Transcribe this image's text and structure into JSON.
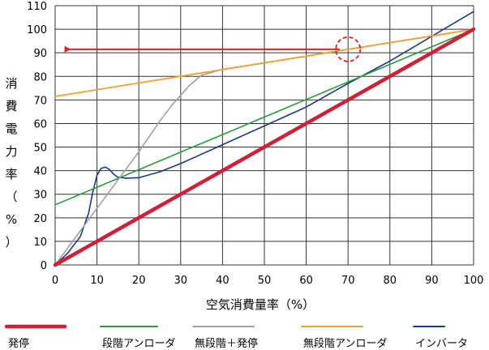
{
  "chart_data": {
    "type": "line",
    "xlabel": "空気消費量率（%）",
    "ylabel": "消費電力率（%）",
    "xlim": [
      0,
      100
    ],
    "ylim": [
      0,
      110
    ],
    "xticks": [
      "0",
      "10",
      "20",
      "30",
      "40",
      "50",
      "60",
      "70",
      "80",
      "90",
      "100"
    ],
    "yticks": [
      "0",
      "10",
      "20",
      "30",
      "40",
      "50",
      "60",
      "70",
      "80",
      "90",
      "100",
      "110"
    ],
    "grid": true,
    "legend_position": "bottom",
    "series": [
      {
        "name": "発停",
        "color": "#d01f36",
        "x": [
          0,
          100
        ],
        "y": [
          0,
          100
        ]
      },
      {
        "name": "段階アンローダ",
        "color": "#2a9a3a",
        "x": [
          0,
          100
        ],
        "y": [
          25.5,
          100
        ]
      },
      {
        "name": "無段階＋発停",
        "color": "#a0a0a0",
        "x": [
          0,
          5,
          10,
          15,
          20,
          25,
          28,
          30,
          32,
          35,
          40,
          50,
          60,
          70,
          80,
          90,
          100
        ],
        "y": [
          0,
          12,
          24,
          36,
          48,
          61,
          68,
          72,
          76,
          80.5,
          83,
          85.7,
          88.6,
          91.5,
          94.3,
          97.1,
          100
        ]
      },
      {
        "name": "無段階アンローダ",
        "color": "#f0a030",
        "x": [
          0,
          100
        ],
        "y": [
          71.5,
          100
        ]
      },
      {
        "name": "インバータ",
        "color": "#1a3a8a",
        "x": [
          0,
          3,
          6,
          8,
          9,
          10,
          11,
          12,
          13,
          14,
          15,
          17,
          20,
          25,
          30,
          40,
          50,
          60,
          70,
          80,
          90,
          100
        ],
        "y": [
          0,
          5,
          12,
          22,
          31,
          38,
          41,
          41.5,
          40.5,
          38.5,
          37.2,
          36.8,
          37,
          39.5,
          43,
          51,
          59,
          67,
          77,
          86.5,
          97,
          107.5
        ]
      }
    ],
    "annotations": [
      {
        "type": "arrow",
        "from": [
          68,
          91.5
        ],
        "to": [
          3,
          91.5
        ],
        "color": "#e02020"
      },
      {
        "type": "circle",
        "at": [
          70,
          91.5
        ],
        "color": "#e02020"
      }
    ]
  }
}
